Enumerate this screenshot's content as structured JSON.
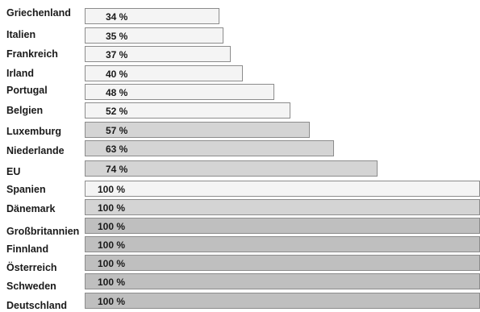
{
  "chart_data": {
    "type": "bar",
    "orientation": "horizontal",
    "xlim": [
      0,
      100
    ],
    "grid": false,
    "title": "",
    "xlabel": "",
    "ylabel": "",
    "unit": "%",
    "categories": [
      "Griechenland",
      "Italien",
      "Frankreich",
      "Irland",
      "Portugal",
      "Belgien",
      "Luxemburg",
      "Niederlande",
      "EU",
      "Spanien",
      "Dänemark",
      "Großbritannien",
      "Finnland",
      "Österreich",
      "Schweden",
      "Deutschland"
    ],
    "values": [
      34,
      35,
      37,
      40,
      48,
      52,
      57,
      63,
      74,
      100,
      100,
      100,
      100,
      100,
      100,
      100
    ],
    "value_labels": [
      "34 %",
      "35 %",
      "37 %",
      "40 %",
      "48 %",
      "52 %",
      "57 %",
      "63 %",
      "74 %",
      "100 %",
      "100 %",
      "100 %",
      "100 %",
      "100 %",
      "100 %",
      "100 %"
    ],
    "bar_colors": [
      "#f4f4f4",
      "#f4f4f4",
      "#f4f4f4",
      "#f4f4f4",
      "#f4f4f4",
      "#f4f4f4",
      "#d4d4d4",
      "#d4d4d4",
      "#d4d4d4",
      "#f4f4f4",
      "#d4d4d4",
      "#bfbfbf",
      "#bfbfbf",
      "#bfbfbf",
      "#bfbfbf",
      "#bfbfbf"
    ]
  }
}
